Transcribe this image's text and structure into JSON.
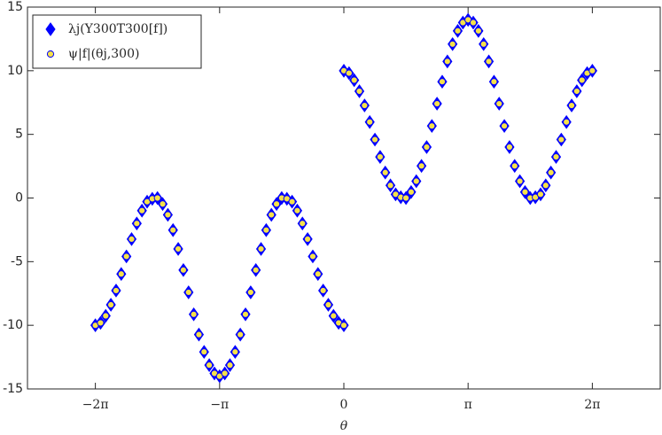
{
  "chart_data": {
    "type": "scatter",
    "xlabel": "θ",
    "xlim": [
      -8,
      8
    ],
    "ylim": [
      -15,
      15
    ],
    "xticks": [
      {
        "value": -6.2832,
        "label": "−2π"
      },
      {
        "value": -3.1416,
        "label": "−π"
      },
      0,
      {
        "value": 3.1416,
        "label": "π"
      },
      {
        "value": 6.2832,
        "label": "2π"
      }
    ],
    "yticks": [
      -15,
      -10,
      -5,
      0,
      5,
      10,
      15
    ],
    "legend": "northwest",
    "x": [
      -6.2832,
      -6.1523,
      -6.0214,
      -5.8905,
      -5.7596,
      -5.6287,
      -5.4978,
      -5.3669,
      -5.236,
      -5.1051,
      -4.9742,
      -4.8433,
      -4.7124,
      -4.5815,
      -4.4506,
      -4.3197,
      -4.1888,
      -4.0579,
      -3.927,
      -3.7961,
      -3.6652,
      -3.5343,
      -3.4034,
      -3.2725,
      -3.1416,
      -3.0107,
      -2.8798,
      -2.7489,
      -2.618,
      -2.4871,
      -2.3562,
      -2.2253,
      -2.0944,
      -1.9635,
      -1.8326,
      -1.7017,
      -1.5708,
      -1.4399,
      -1.309,
      -1.1781,
      -1.0472,
      -0.9163,
      -0.7854,
      -0.6545,
      -0.5236,
      -0.3927,
      -0.2618,
      -0.1309,
      0,
      0,
      0.1309,
      0.2618,
      0.3927,
      0.5236,
      0.6545,
      0.7854,
      0.9163,
      1.0472,
      1.1781,
      1.309,
      1.4399,
      1.5708,
      1.7017,
      1.8326,
      1.9635,
      2.0944,
      2.2253,
      2.3562,
      2.4871,
      2.618,
      2.7489,
      2.8798,
      3.0107,
      3.1416,
      3.2725,
      3.4034,
      3.5343,
      3.6652,
      3.7961,
      3.927,
      4.0579,
      4.1888,
      4.3197,
      4.4506,
      4.5815,
      4.7124,
      4.8433,
      4.9742,
      5.1051,
      5.236,
      5.3669,
      5.4978,
      5.6287,
      5.7596,
      5.8905,
      6.0214,
      6.1523,
      6.2832
    ],
    "series": [
      {
        "name": "λj(Y300T300[f])",
        "marker": "diamond",
        "color": "#0000ff",
        "edgecolor": "#0000ff",
        "values": [
          -10,
          -9.81,
          -9.26,
          -8.39,
          -7.27,
          -5.97,
          -4.59,
          -3.23,
          -2,
          -0.99,
          -0.29,
          -0.06,
          0,
          -0.47,
          -1.32,
          -2.52,
          -4,
          -5.66,
          -7.41,
          -9.14,
          -10.73,
          -12.09,
          -13.13,
          -13.78,
          -14,
          -13.78,
          -13.13,
          -12.09,
          -10.73,
          -9.14,
          -7.41,
          -5.66,
          -4,
          -2.52,
          -1.32,
          -0.47,
          0,
          -0.06,
          -0.29,
          -0.99,
          -2,
          -3.23,
          -4.59,
          -5.97,
          -7.27,
          -8.39,
          -9.26,
          -9.81,
          -10,
          10,
          9.81,
          9.26,
          8.39,
          7.27,
          5.97,
          4.59,
          3.23,
          2,
          0.99,
          0.29,
          0.06,
          0,
          0.47,
          1.32,
          2.52,
          4,
          5.66,
          7.41,
          9.14,
          10.73,
          12.09,
          13.13,
          13.78,
          14,
          13.78,
          13.13,
          12.09,
          10.73,
          9.14,
          7.41,
          5.66,
          4,
          2.52,
          1.32,
          0.47,
          0,
          0.06,
          0.29,
          0.99,
          2,
          3.23,
          4.59,
          5.97,
          7.27,
          8.39,
          9.26,
          9.81,
          10
        ]
      },
      {
        "name": "ψ|f|(θj,300)",
        "marker": "circle",
        "color": "#f5e14a",
        "edgecolor": "#0000ff",
        "values": [
          -10,
          -9.81,
          -9.26,
          -8.39,
          -7.27,
          -5.97,
          -4.59,
          -3.23,
          -2,
          -0.99,
          -0.29,
          -0.06,
          0,
          -0.47,
          -1.32,
          -2.52,
          -4,
          -5.66,
          -7.41,
          -9.14,
          -10.73,
          -12.09,
          -13.13,
          -13.78,
          -14,
          -13.78,
          -13.13,
          -12.09,
          -10.73,
          -9.14,
          -7.41,
          -5.66,
          -4,
          -2.52,
          -1.32,
          -0.47,
          0,
          -0.06,
          -0.29,
          -0.99,
          -2,
          -3.23,
          -4.59,
          -5.97,
          -7.27,
          -8.39,
          -9.26,
          -9.81,
          -10,
          10,
          9.81,
          9.26,
          8.39,
          7.27,
          5.97,
          4.59,
          3.23,
          2,
          0.99,
          0.29,
          0.06,
          0,
          0.47,
          1.32,
          2.52,
          4,
          5.66,
          7.41,
          9.14,
          10.73,
          12.09,
          13.13,
          13.78,
          14,
          13.78,
          13.13,
          12.09,
          10.73,
          9.14,
          7.41,
          5.66,
          4,
          2.52,
          1.32,
          0.47,
          0,
          0.06,
          0.29,
          0.99,
          2,
          3.23,
          4.59,
          5.97,
          7.27,
          8.39,
          9.26,
          9.81,
          10
        ]
      }
    ]
  }
}
